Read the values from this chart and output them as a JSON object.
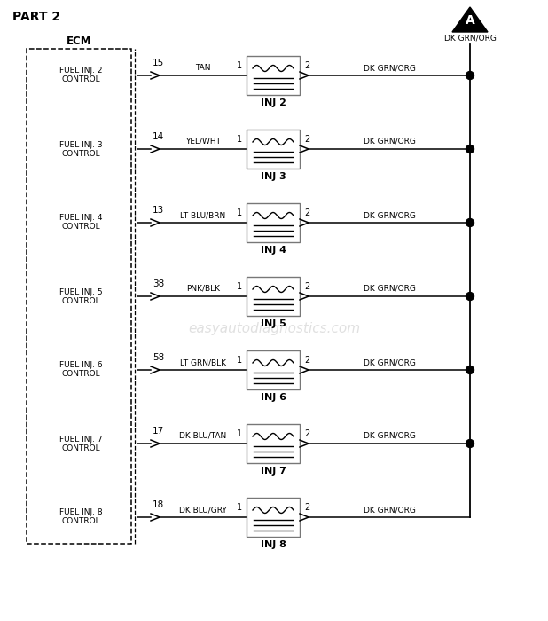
{
  "title": "PART 2",
  "bg_color": "#ffffff",
  "injectors": [
    {
      "label1": "FUEL INJ. 2",
      "label2": "CONTROL",
      "pin": "15",
      "wire": "TAN",
      "inj": "INJ 2"
    },
    {
      "label1": "FUEL INJ. 3",
      "label2": "CONTROL",
      "pin": "14",
      "wire": "YEL/WHT",
      "inj": "INJ 3"
    },
    {
      "label1": "FUEL INJ. 4",
      "label2": "CONTROL",
      "pin": "13",
      "wire": "LT BLU/BRN",
      "inj": "INJ 4"
    },
    {
      "label1": "FUEL INJ. 5",
      "label2": "CONTROL",
      "pin": "38",
      "wire": "PNK/BLK",
      "inj": "INJ 5"
    },
    {
      "label1": "FUEL INJ. 6",
      "label2": "CONTROL",
      "pin": "58",
      "wire": "LT GRN/BLK",
      "inj": "INJ 6"
    },
    {
      "label1": "FUEL INJ. 7",
      "label2": "CONTROL",
      "pin": "17",
      "wire": "DK BLU/TAN",
      "inj": "INJ 7"
    },
    {
      "label1": "FUEL INJ. 8",
      "label2": "CONTROL",
      "pin": "18",
      "wire": "DK BLU/GRY",
      "inj": "INJ 8"
    }
  ],
  "right_wire_label": "DK GRN/ORG",
  "connector_label": "DK GRN/ORG",
  "top_connector_label": "DK GRN/ORG",
  "watermark": "easyautodiagnostics.com",
  "ecm_label": "ECM",
  "connector_A_label": "A",
  "figw": 6.18,
  "figh": 7.0,
  "dpi": 100
}
